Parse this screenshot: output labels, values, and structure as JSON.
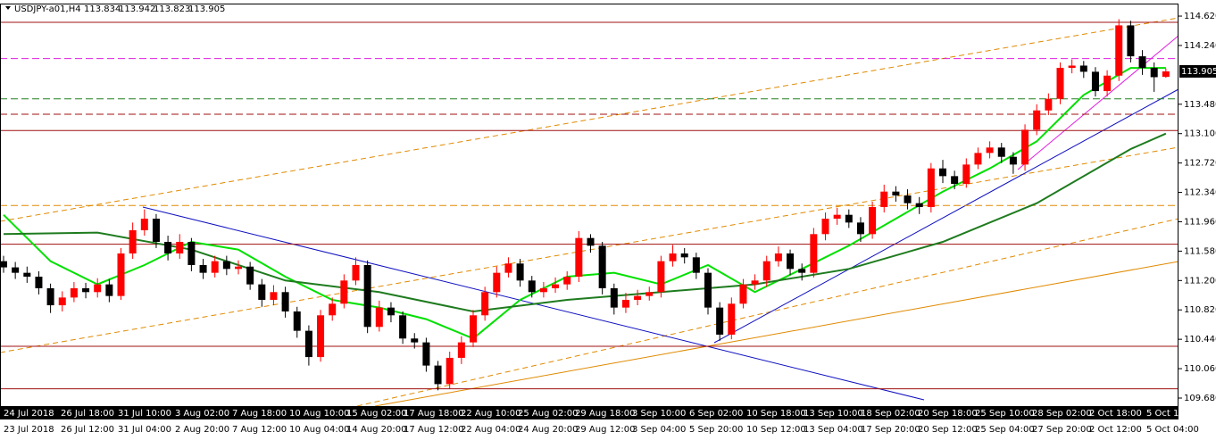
{
  "chart_data": {
    "type": "candlestick",
    "title": "USDJPY-a01,H4",
    "open": [
      111.45,
      111.37,
      111.3,
      111.25,
      111.1,
      110.88,
      110.98,
      111.1,
      111.05,
      111.15,
      111.0,
      111.55,
      111.85,
      112.0,
      111.7,
      111.55,
      111.7,
      111.4,
      111.3,
      111.45,
      111.35,
      111.38,
      111.15,
      110.95,
      111.05,
      110.8,
      110.55,
      110.21,
      110.75,
      110.9,
      111.2,
      111.4,
      110.6,
      110.85,
      110.75,
      110.45,
      110.4,
      110.1,
      109.86,
      110.2,
      110.4,
      110.75,
      111.05,
      111.3,
      111.42,
      111.2,
      111.05,
      111.1,
      111.15,
      111.25,
      111.75,
      111.65,
      111.1,
      110.85,
      110.95,
      111.0,
      111.05,
      111.45,
      111.55,
      111.5,
      111.3,
      110.85,
      110.5,
      110.9,
      111.15,
      111.2,
      111.45,
      111.55,
      111.35,
      111.3,
      111.8,
      112.0,
      112.05,
      111.95,
      111.8,
      112.15,
      112.35,
      112.3,
      112.2,
      112.15,
      112.65,
      112.55,
      112.45,
      112.7,
      112.85,
      112.92,
      112.8,
      112.7,
      113.15,
      113.4,
      113.55,
      113.95,
      113.98,
      113.9,
      113.65,
      113.85,
      114.5,
      114.1,
      113.95,
      113.834
    ],
    "high": [
      111.52,
      111.44,
      111.38,
      111.32,
      111.16,
      111.06,
      111.18,
      111.17,
      111.23,
      111.22,
      111.62,
      111.95,
      112.12,
      112.06,
      111.78,
      111.8,
      111.75,
      111.48,
      111.52,
      111.52,
      111.46,
      111.44,
      111.22,
      111.14,
      111.12,
      110.86,
      110.62,
      110.82,
      110.98,
      111.28,
      111.5,
      111.46,
      110.94,
      110.92,
      110.8,
      110.52,
      110.46,
      110.16,
      110.28,
      110.48,
      110.82,
      111.12,
      111.38,
      111.5,
      111.48,
      111.26,
      111.18,
      111.24,
      111.32,
      111.84,
      111.8,
      111.7,
      111.16,
      111.04,
      111.08,
      111.12,
      111.52,
      111.66,
      111.62,
      111.56,
      111.36,
      110.92,
      110.98,
      111.22,
      111.28,
      111.52,
      111.64,
      111.6,
      111.42,
      111.88,
      112.08,
      112.14,
      112.12,
      112.02,
      112.22,
      112.44,
      112.42,
      112.38,
      112.28,
      112.72,
      112.76,
      112.62,
      112.78,
      112.92,
      113.0,
      112.98,
      112.86,
      113.22,
      113.48,
      113.62,
      114.02,
      114.06,
      114.04,
      113.96,
      113.92,
      114.58,
      114.56,
      114.18,
      114.02,
      113.942
    ],
    "low": [
      111.3,
      111.22,
      111.17,
      111.02,
      110.78,
      110.8,
      110.92,
      110.97,
      110.98,
      110.92,
      110.95,
      111.48,
      111.78,
      111.62,
      111.46,
      111.48,
      111.32,
      111.22,
      111.24,
      111.27,
      111.28,
      111.08,
      110.86,
      110.88,
      110.72,
      110.46,
      110.1,
      110.15,
      110.68,
      110.84,
      111.14,
      110.52,
      110.54,
      110.66,
      110.38,
      110.32,
      110.02,
      109.78,
      109.8,
      110.12,
      110.34,
      110.68,
      110.98,
      111.24,
      111.12,
      110.98,
      110.98,
      111.04,
      111.08,
      111.18,
      111.56,
      111.02,
      110.76,
      110.78,
      110.88,
      110.94,
      110.98,
      111.38,
      111.42,
      111.22,
      110.76,
      110.42,
      110.44,
      110.84,
      111.08,
      111.12,
      111.38,
      111.27,
      111.2,
      111.24,
      111.72,
      111.92,
      111.88,
      111.7,
      111.74,
      112.08,
      112.22,
      112.12,
      112.06,
      112.08,
      112.46,
      112.38,
      112.4,
      112.64,
      112.78,
      112.72,
      112.58,
      112.62,
      113.08,
      113.34,
      113.48,
      113.88,
      113.82,
      113.58,
      113.58,
      113.78,
      114.02,
      113.86,
      113.64,
      113.823
    ],
    "close": [
      111.37,
      111.3,
      111.25,
      111.1,
      110.88,
      110.98,
      111.1,
      111.05,
      111.15,
      111.0,
      111.55,
      111.85,
      112.0,
      111.7,
      111.55,
      111.7,
      111.4,
      111.3,
      111.45,
      111.35,
      111.38,
      111.15,
      110.95,
      111.05,
      110.8,
      110.55,
      110.21,
      110.75,
      110.9,
      111.2,
      111.4,
      110.6,
      110.85,
      110.75,
      110.45,
      110.4,
      110.1,
      109.86,
      110.2,
      110.4,
      110.75,
      111.05,
      111.3,
      111.42,
      111.2,
      111.05,
      111.1,
      111.15,
      111.25,
      111.75,
      111.65,
      111.1,
      110.85,
      110.95,
      111.0,
      111.05,
      111.45,
      111.55,
      111.5,
      111.3,
      110.85,
      110.5,
      110.9,
      111.15,
      111.2,
      111.45,
      111.55,
      111.35,
      111.3,
      111.8,
      112.0,
      112.05,
      111.95,
      111.8,
      112.15,
      112.35,
      112.3,
      112.2,
      112.15,
      112.65,
      112.55,
      112.45,
      112.7,
      112.85,
      112.92,
      112.8,
      112.7,
      113.15,
      113.4,
      113.55,
      113.95,
      113.98,
      113.9,
      113.65,
      113.85,
      114.5,
      114.1,
      113.95,
      113.83,
      113.905
    ],
    "up_color": "#ff0000",
    "down_color": "#000000",
    "moving_averages": [
      {
        "color": "#00e000",
        "x": [
          0,
          4,
          8,
          12,
          16,
          20,
          24,
          28,
          32,
          36,
          40,
          44,
          48,
          52,
          56,
          60,
          64,
          68,
          72,
          76,
          80,
          84,
          88,
          92,
          96,
          99
        ],
        "values": [
          112.05,
          111.45,
          111.15,
          111.4,
          111.7,
          111.6,
          111.25,
          110.95,
          110.85,
          110.7,
          110.45,
          110.95,
          111.25,
          111.3,
          111.15,
          111.4,
          111.05,
          111.35,
          111.65,
          112.0,
          112.35,
          112.65,
          113.0,
          113.6,
          113.95,
          113.95
        ]
      },
      {
        "color": "#1e7b1e",
        "x": [
          0,
          8,
          16,
          24,
          32,
          40,
          48,
          56,
          64,
          72,
          80,
          88,
          96,
          99
        ],
        "values": [
          111.8,
          111.82,
          111.6,
          111.2,
          111.05,
          110.8,
          110.95,
          111.05,
          111.15,
          111.35,
          111.7,
          112.2,
          112.9,
          113.1
        ]
      }
    ],
    "levels": [
      {
        "value": 114.54,
        "color": "#a01010",
        "dashed": false
      },
      {
        "value": 114.07,
        "color": "#e020e0",
        "dashed": true
      },
      {
        "value": 113.55,
        "color": "#208020",
        "dashed": true
      },
      {
        "value": 113.35,
        "color": "#a01010",
        "dashed": true
      },
      {
        "value": 113.14,
        "color": "#a01010",
        "dashed": false
      },
      {
        "value": 112.17,
        "color": "#e08a00",
        "dashed": true
      },
      {
        "value": 111.67,
        "color": "#a01010",
        "dashed": false
      },
      {
        "value": 110.35,
        "color": "#a01010",
        "dashed": false
      },
      {
        "value": 109.8,
        "color": "#a01010",
        "dashed": false
      }
    ],
    "ylim": [
      109.576,
      114.782
    ],
    "yticks": [
      {
        "value": 114.62,
        "label": "114.620"
      },
      {
        "value": 114.24,
        "label": "114.240"
      },
      {
        "value": 113.48,
        "label": "113.480"
      },
      {
        "value": 113.1,
        "label": "113.100"
      },
      {
        "value": 112.72,
        "label": "112.720"
      },
      {
        "value": 112.34,
        "label": "112.340"
      },
      {
        "value": 111.96,
        "label": "111.960"
      },
      {
        "value": 111.58,
        "label": "111.580"
      },
      {
        "value": 111.2,
        "label": "111.200"
      },
      {
        "value": 110.82,
        "label": "110.820"
      },
      {
        "value": 110.44,
        "label": "110.440"
      },
      {
        "value": 110.06,
        "label": "110.060"
      },
      {
        "value": 109.68,
        "label": "109.680"
      }
    ],
    "time_labels_top": [
      "24 Jul 2018",
      "26 Jul 18:00",
      "31 Jul 10:00",
      "3 Aug 02:00",
      "7 Aug 18:00",
      "10 Aug 10:00",
      "15 Aug 02:00",
      "17 Aug 18:00",
      "22 Aug 10:00",
      "25 Aug 02:00",
      "29 Aug 18:00",
      "3 Sep 10:00",
      "6 Sep 02:00",
      "10 Sep 18:00",
      "13 Sep 10:00",
      "18 Sep 02:00",
      "20 Sep 18:00",
      "25 Sep 10:00",
      "28 Sep 02:00",
      "2 Oct 18:00",
      "5 Oct 10"
    ],
    "time_labels_bottom": [
      "23 Jul 2018",
      "26 Jul 12:00",
      "31 Jul 04:00",
      "2 Aug 20:00",
      "7 Aug 12:00",
      "10 Aug 04:00",
      "14 Aug 20:00",
      "17 Aug 12:00",
      "22 Aug 04:00",
      "24 Aug 20:00",
      "29 Aug 12:00",
      "3 Sep 04:00",
      "5 Sep 20:00",
      "10 Sep 12:00",
      "13 Sep 04:00",
      "17 Sep 20:00",
      "20 Sep 12:00",
      "25 Sep 04:00",
      "27 Sep 20:00",
      "2 Oct 12:00",
      "5 Oct 04:00"
    ]
  }
}
